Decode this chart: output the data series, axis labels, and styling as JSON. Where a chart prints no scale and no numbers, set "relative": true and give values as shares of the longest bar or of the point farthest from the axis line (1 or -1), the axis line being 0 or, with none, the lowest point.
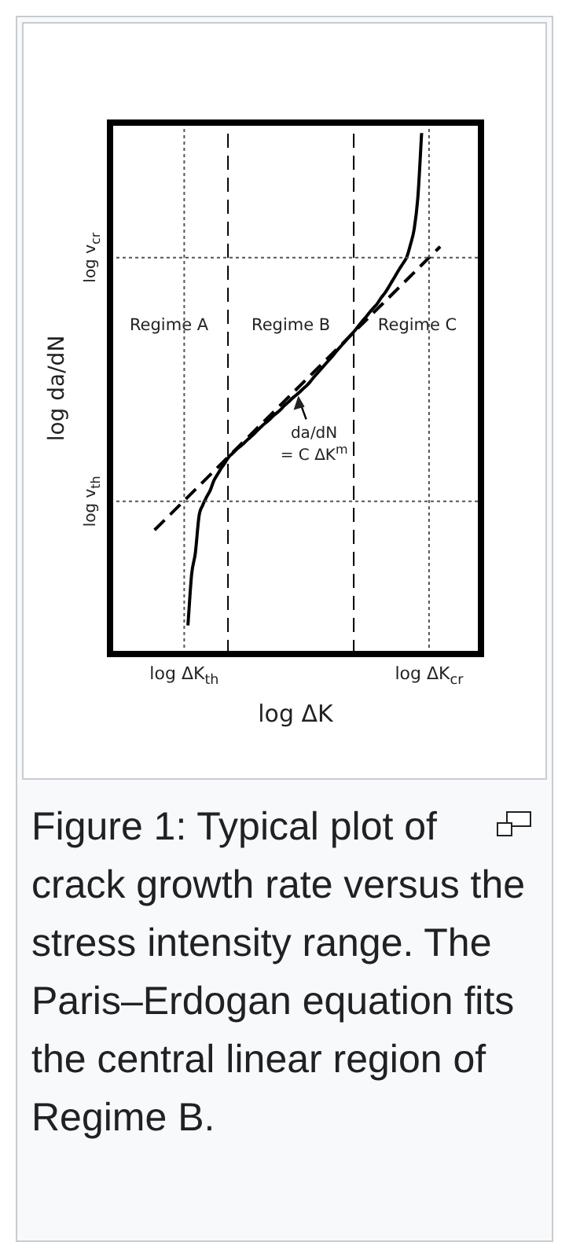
{
  "chart_data": {
    "type": "line",
    "relative": true,
    "xlabel": "log ΔK",
    "ylabel": "log da/dN",
    "categories": [
      null,
      null,
      null,
      null,
      null,
      null,
      null,
      null,
      null,
      null,
      null,
      null,
      null,
      null,
      null,
      null,
      null,
      null,
      null,
      null,
      "log ΔK$_{th}$",
      null,
      null,
      null,
      null,
      null,
      null,
      null,
      null,
      null,
      null,
      null,
      null,
      null,
      null,
      null,
      null,
      null,
      null,
      null,
      null,
      null,
      null,
      null,
      null,
      null,
      null,
      null,
      null,
      null,
      null,
      null,
      null,
      null,
      null,
      null,
      null,
      null,
      null,
      null,
      null,
      null,
      null,
      null,
      null,
      null,
      null,
      null,
      null,
      null,
      null,
      null,
      null,
      null,
      null,
      null,
      null,
      null,
      null,
      null,
      null,
      null,
      null,
      null,
      null,
      null,
      "log ΔK$_{cr}$",
      null,
      null,
      null,
      null,
      null,
      null,
      null,
      null,
      null,
      null,
      null,
      null,
      null,
      null
    ],
    "series": [
      {
        "color": "#000000",
        "line_style": "solid",
        "values": [
          null,
          null,
          null,
          null,
          null,
          null,
          null,
          null,
          null,
          null,
          null,
          null,
          null,
          null,
          null,
          null,
          null,
          null,
          null,
          null,
          null,
          0.055,
          0.153,
          0.194,
          0.265,
          0.286,
          0.301,
          0.314,
          0.333,
          0.345,
          0.357,
          0.367,
          0.378,
          0.385,
          0.392,
          0.398,
          0.404,
          0.411,
          0.417,
          0.424,
          0.431,
          0.438,
          0.444,
          0.45,
          0.457,
          0.463,
          0.469,
          0.477,
          0.483,
          0.49,
          0.496,
          0.502,
          0.509,
          0.515,
          0.523,
          0.532,
          0.54,
          0.548,
          0.556,
          0.564,
          0.572,
          0.581,
          0.589,
          0.597,
          0.605,
          0.613,
          0.621,
          0.63,
          0.639,
          0.647,
          0.656,
          0.664,
          0.672,
          0.683,
          0.692,
          0.703,
          0.715,
          0.727,
          0.739,
          0.75,
          0.762,
          0.786,
          0.816,
          0.878,
          1,
          null,
          null,
          null,
          null,
          null,
          null,
          null,
          null,
          null,
          null,
          null,
          null,
          null,
          null,
          null,
          null
        ]
      },
      {
        "color": "#000000",
        "line_style": "dashed",
        "values": [
          null,
          null,
          null,
          null,
          null,
          null,
          null,
          null,
          null,
          null,
          null,
          null,
          0.238,
          null,
          null,
          null,
          null,
          null,
          null,
          null,
          null,
          null,
          null,
          null,
          null,
          null,
          null,
          null,
          null,
          null,
          null,
          null,
          null,
          null,
          null,
          null,
          null,
          null,
          null,
          null,
          null,
          null,
          null,
          null,
          null,
          null,
          null,
          null,
          null,
          null,
          null,
          null,
          null,
          null,
          null,
          null,
          null,
          null,
          null,
          null,
          null,
          null,
          null,
          null,
          null,
          null,
          null,
          null,
          null,
          null,
          null,
          null,
          null,
          null,
          null,
          null,
          null,
          null,
          null,
          null,
          null,
          null,
          null,
          null,
          null,
          null,
          null,
          null,
          null,
          0.782,
          null,
          null,
          null,
          null,
          null,
          null,
          null,
          null,
          null,
          null,
          null
        ]
      }
    ],
    "ref_lines": [
      {
        "axis": "y",
        "value": 0.293,
        "label": "log v$_{th}$",
        "color": "#555555",
        "line_style": "dotted"
      },
      {
        "axis": "y",
        "value": 0.761,
        "label": "log v$_{cr}$",
        "color": "#555555",
        "line_style": "dotted"
      }
    ],
    "annotations": [
      "Regime A",
      "Regime B",
      "Regime C",
      "da/dN\n= C ΔK$^{m}$",
      "Figure 1: Typical plot of crack growth rate versus the stress intensity range. The Paris–Erdogan equation fits the central linear region of Regime B."
    ],
    "legend": false
  }
}
